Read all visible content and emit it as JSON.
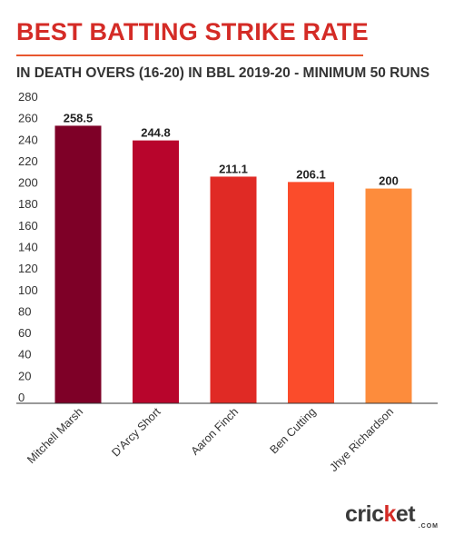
{
  "header": {
    "title": "BEST BATTING STRIKE RATE",
    "subtitle": "IN DEATH OVERS (16-20) IN BBL 2019-20 - MINIMUM 50 RUNS"
  },
  "logo": {
    "word_start": "cric",
    "word_mark": "k",
    "word_end": "et",
    "sub": ".COM"
  },
  "colors": {
    "title": "#d42b26",
    "rule": "#e8562e",
    "bars": [
      "#7e0027",
      "#b8052c",
      "#e02a25",
      "#fb4c2b",
      "#fd8c3c"
    ]
  },
  "chart_data": {
    "type": "bar",
    "title": "",
    "xlabel": "",
    "ylabel": "",
    "categories": [
      "Mitchell Marsh",
      "D'Arcy Short",
      "Aaron Finch",
      "Ben Cutting",
      "Jhye Richardson"
    ],
    "values": [
      258.5,
      244.8,
      211.1,
      206.1,
      200
    ],
    "data_labels": [
      "258.5",
      "244.8",
      "211.1",
      "206.1",
      "200"
    ],
    "ylim": [
      0,
      280
    ],
    "yticks": [
      0,
      20,
      40,
      60,
      80,
      100,
      120,
      140,
      160,
      180,
      200,
      220,
      240,
      260,
      280
    ],
    "grid": false,
    "legend": "none"
  }
}
